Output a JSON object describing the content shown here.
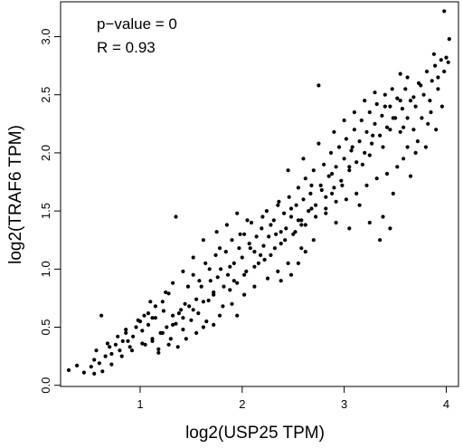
{
  "chart_data": {
    "type": "scatter",
    "title": "",
    "xlabel": "log2(USP25 TPM)",
    "ylabel": "log2(TRAF6 TPM)",
    "xlim": [
      0.22,
      4.12
    ],
    "ylim": [
      -0.01,
      3.3
    ],
    "x_ticks": [
      1,
      2,
      3,
      4
    ],
    "y_ticks": [
      0.0,
      0.5,
      1.0,
      1.5,
      2.0,
      2.5,
      3.0
    ],
    "x_tick_labels": [
      "1",
      "2",
      "3",
      "4"
    ],
    "y_tick_labels": [
      "0.0",
      "0.5",
      "1.0",
      "1.5",
      "2.0",
      "2.5",
      "3.0"
    ],
    "annotations": [
      "p−value = 0",
      "R = 0.93"
    ],
    "grid": false,
    "legend": "none",
    "point_color": "#000000",
    "points": [
      [
        0.3,
        0.13
      ],
      [
        0.38,
        0.17
      ],
      [
        0.45,
        0.11
      ],
      [
        0.52,
        0.16
      ],
      [
        0.55,
        0.22
      ],
      [
        0.57,
        0.3
      ],
      [
        0.6,
        0.19
      ],
      [
        0.63,
        0.12
      ],
      [
        0.66,
        0.25
      ],
      [
        0.7,
        0.33
      ],
      [
        0.72,
        0.27
      ],
      [
        0.76,
        0.35
      ],
      [
        0.8,
        0.3
      ],
      [
        0.83,
        0.38
      ],
      [
        0.86,
        0.45
      ],
      [
        0.9,
        0.33
      ],
      [
        0.93,
        0.42
      ],
      [
        0.96,
        0.5
      ],
      [
        1.0,
        0.55
      ],
      [
        1.02,
        0.47
      ],
      [
        1.04,
        0.6
      ],
      [
        1.08,
        0.52
      ],
      [
        1.1,
        0.72
      ],
      [
        1.12,
        0.38
      ],
      [
        1.15,
        0.58
      ],
      [
        1.18,
        0.31
      ],
      [
        1.2,
        0.45
      ],
      [
        1.23,
        0.64
      ],
      [
        1.26,
        0.5
      ],
      [
        1.28,
        0.79
      ],
      [
        1.3,
        0.4
      ],
      [
        1.32,
        0.6
      ],
      [
        1.35,
        0.53
      ],
      [
        1.37,
        0.33
      ],
      [
        1.4,
        0.65
      ],
      [
        1.42,
        0.48
      ],
      [
        1.44,
        0.7
      ],
      [
        1.47,
        0.85
      ],
      [
        1.5,
        0.56
      ],
      [
        1.52,
        0.95
      ],
      [
        1.55,
        0.74
      ],
      [
        1.57,
        0.62
      ],
      [
        1.6,
        0.85
      ],
      [
        1.62,
        0.5
      ],
      [
        1.64,
        1.05
      ],
      [
        1.67,
        0.73
      ],
      [
        1.69,
        0.9
      ],
      [
        1.72,
        0.8
      ],
      [
        1.74,
        1.12
      ],
      [
        1.76,
        0.93
      ],
      [
        1.79,
        1.0
      ],
      [
        1.81,
        0.68
      ],
      [
        1.84,
        1.15
      ],
      [
        1.86,
        0.95
      ],
      [
        1.88,
        0.82
      ],
      [
        1.9,
        1.25
      ],
      [
        1.92,
        1.05
      ],
      [
        1.95,
        0.88
      ],
      [
        1.97,
        1.18
      ],
      [
        2.0,
        1.1
      ],
      [
        2.02,
        1.3
      ],
      [
        2.04,
        0.98
      ],
      [
        2.07,
        1.22
      ],
      [
        2.09,
        1.4
      ],
      [
        2.12,
        1.15
      ],
      [
        2.14,
        1.28
      ],
      [
        2.16,
        1.05
      ],
      [
        2.19,
        1.35
      ],
      [
        2.21,
        1.2
      ],
      [
        2.24,
        1.5
      ],
      [
        2.26,
        1.28
      ],
      [
        2.28,
        1.12
      ],
      [
        2.31,
        1.42
      ],
      [
        2.33,
        1.3
      ],
      [
        2.36,
        1.58
      ],
      [
        2.38,
        1.22
      ],
      [
        2.41,
        1.48
      ],
      [
        2.43,
        1.35
      ],
      [
        2.46,
        1.62
      ],
      [
        2.48,
        1.45
      ],
      [
        2.5,
        1.3
      ],
      [
        2.53,
        1.55
      ],
      [
        2.55,
        1.7
      ],
      [
        2.58,
        1.42
      ],
      [
        2.6,
        1.6
      ],
      [
        2.62,
        1.78
      ],
      [
        2.65,
        1.5
      ],
      [
        2.67,
        1.65
      ],
      [
        2.7,
        1.85
      ],
      [
        2.72,
        1.55
      ],
      [
        2.75,
        2.58
      ],
      [
        2.77,
        1.72
      ],
      [
        2.8,
        1.9
      ],
      [
        2.82,
        1.62
      ],
      [
        2.85,
        1.8
      ],
      [
        2.87,
        2.0
      ],
      [
        2.9,
        1.7
      ],
      [
        2.92,
        1.88
      ],
      [
        2.95,
        2.05
      ],
      [
        2.97,
        1.76
      ],
      [
        3.0,
        1.95
      ],
      [
        3.02,
        2.12
      ],
      [
        3.05,
        1.85
      ],
      [
        3.07,
        2.02
      ],
      [
        3.1,
        2.2
      ],
      [
        3.12,
        1.92
      ],
      [
        3.15,
        2.1
      ],
      [
        3.17,
        2.28
      ],
      [
        3.2,
        2.0
      ],
      [
        3.22,
        2.18
      ],
      [
        3.25,
        2.35
      ],
      [
        3.27,
        2.08
      ],
      [
        3.3,
        2.25
      ],
      [
        3.32,
        2.42
      ],
      [
        3.35,
        2.15
      ],
      [
        3.37,
        2.32
      ],
      [
        3.4,
        2.5
      ],
      [
        3.42,
        2.22
      ],
      [
        3.45,
        2.4
      ],
      [
        3.47,
        2.55
      ],
      [
        3.5,
        2.3
      ],
      [
        3.52,
        2.47
      ],
      [
        3.55,
        2.18
      ],
      [
        3.57,
        2.38
      ],
      [
        3.6,
        2.55
      ],
      [
        3.62,
        2.3
      ],
      [
        3.65,
        2.45
      ],
      [
        3.68,
        2.2
      ],
      [
        3.7,
        2.4
      ],
      [
        3.73,
        2.6
      ],
      [
        3.76,
        2.3
      ],
      [
        3.78,
        2.5
      ],
      [
        3.81,
        2.7
      ],
      [
        3.84,
        2.45
      ],
      [
        3.86,
        2.62
      ],
      [
        3.89,
        2.75
      ],
      [
        3.92,
        2.55
      ],
      [
        3.95,
        2.8
      ],
      [
        3.98,
        2.7
      ],
      [
        4.0,
        2.82
      ],
      [
        3.98,
        3.22
      ],
      [
        4.03,
        2.98
      ],
      [
        3.96,
        2.4
      ],
      [
        3.9,
        2.2
      ],
      [
        3.82,
        2.25
      ],
      [
        3.7,
        2.0
      ],
      [
        3.58,
        1.95
      ],
      [
        3.48,
        1.65
      ],
      [
        3.38,
        1.45
      ],
      [
        3.25,
        1.4
      ],
      [
        3.15,
        1.55
      ],
      [
        3.05,
        1.35
      ],
      [
        2.92,
        1.4
      ],
      [
        2.82,
        1.48
      ],
      [
        2.7,
        1.25
      ],
      [
        2.58,
        1.18
      ],
      [
        2.45,
        1.05
      ],
      [
        2.35,
        0.98
      ],
      [
        2.25,
        0.92
      ],
      [
        2.12,
        0.85
      ],
      [
        2.02,
        0.78
      ],
      [
        1.9,
        0.7
      ],
      [
        1.78,
        0.6
      ],
      [
        1.65,
        0.55
      ],
      [
        1.55,
        0.45
      ],
      [
        1.45,
        0.4
      ],
      [
        1.35,
        1.45
      ],
      [
        1.28,
        0.35
      ],
      [
        1.18,
        0.28
      ],
      [
        1.05,
        0.35
      ],
      [
        0.88,
        0.38
      ],
      [
        0.72,
        0.18
      ],
      [
        0.62,
        0.6
      ],
      [
        0.55,
        0.1
      ],
      [
        1.12,
        0.58
      ],
      [
        1.22,
        0.72
      ],
      [
        1.38,
        0.62
      ],
      [
        1.48,
        0.68
      ],
      [
        1.58,
        0.9
      ],
      [
        1.68,
        1.0
      ],
      [
        1.78,
        1.18
      ],
      [
        1.88,
        1.02
      ],
      [
        1.98,
        1.3
      ],
      [
        2.08,
        1.18
      ],
      [
        2.18,
        1.12
      ],
      [
        2.28,
        1.38
      ],
      [
        2.38,
        1.32
      ],
      [
        2.48,
        1.52
      ],
      [
        2.58,
        1.38
      ],
      [
        2.68,
        1.72
      ],
      [
        2.78,
        1.68
      ],
      [
        2.88,
        1.82
      ],
      [
        2.98,
        1.72
      ],
      [
        3.08,
        2.05
      ],
      [
        3.18,
        1.9
      ],
      [
        3.28,
        2.15
      ],
      [
        3.38,
        2.05
      ],
      [
        3.48,
        2.3
      ],
      [
        3.58,
        2.22
      ],
      [
        3.68,
        2.48
      ],
      [
        3.72,
        2.1
      ],
      [
        3.62,
        2.05
      ],
      [
        3.52,
        1.88
      ],
      [
        3.42,
        1.82
      ],
      [
        3.32,
        1.78
      ],
      [
        3.22,
        1.72
      ],
      [
        3.12,
        1.65
      ],
      [
        3.02,
        1.6
      ],
      [
        2.92,
        1.58
      ],
      [
        2.82,
        1.52
      ],
      [
        2.72,
        1.45
      ],
      [
        2.62,
        1.38
      ],
      [
        2.52,
        1.32
      ],
      [
        2.42,
        1.25
      ],
      [
        2.32,
        1.18
      ],
      [
        2.22,
        1.08
      ],
      [
        2.12,
        1.02
      ],
      [
        2.02,
        0.95
      ],
      [
        1.92,
        0.9
      ],
      [
        1.82,
        0.85
      ],
      [
        1.72,
        0.78
      ],
      [
        1.62,
        0.72
      ],
      [
        1.52,
        0.65
      ],
      [
        1.42,
        0.58
      ],
      [
        1.32,
        0.52
      ],
      [
        1.22,
        0.45
      ],
      [
        1.12,
        0.4
      ],
      [
        1.02,
        0.36
      ],
      [
        0.92,
        0.3
      ],
      [
        0.82,
        0.25
      ],
      [
        2.45,
        1.85
      ],
      [
        2.6,
        1.95
      ],
      [
        2.75,
        2.08
      ],
      [
        2.9,
        2.18
      ],
      [
        3.0,
        2.28
      ],
      [
        3.1,
        2.35
      ],
      [
        3.2,
        2.45
      ],
      [
        3.3,
        2.52
      ],
      [
        3.4,
        2.4
      ],
      [
        3.55,
        2.68
      ],
      [
        3.62,
        2.65
      ],
      [
        3.75,
        2.58
      ],
      [
        3.85,
        2.35
      ],
      [
        2.35,
        1.55
      ],
      [
        2.2,
        1.45
      ],
      [
        2.05,
        1.42
      ],
      [
        1.95,
        1.48
      ],
      [
        1.85,
        1.38
      ],
      [
        1.75,
        1.32
      ],
      [
        1.62,
        1.25
      ],
      [
        1.52,
        1.1
      ],
      [
        1.42,
        0.98
      ],
      [
        1.32,
        0.88
      ],
      [
        1.25,
        0.8
      ],
      [
        1.15,
        0.68
      ],
      [
        1.08,
        0.62
      ],
      [
        0.98,
        0.56
      ],
      [
        0.86,
        0.48
      ],
      [
        0.78,
        0.42
      ],
      [
        0.68,
        0.36
      ],
      [
        2.55,
        1.05
      ],
      [
        2.62,
        1.15
      ],
      [
        2.38,
        0.9
      ],
      [
        2.48,
        0.95
      ],
      [
        1.95,
        0.6
      ],
      [
        1.72,
        0.52
      ],
      [
        3.35,
        1.25
      ],
      [
        3.45,
        1.35
      ],
      [
        3.65,
        1.8
      ],
      [
        3.8,
        2.05
      ],
      [
        3.92,
        2.65
      ],
      [
        3.88,
        2.85
      ],
      [
        4.02,
        2.78
      ],
      [
        3.55,
        2.45
      ],
      [
        3.45,
        2.2
      ],
      [
        3.25,
        1.98
      ],
      [
        3.05,
        1.88
      ],
      [
        2.88,
        1.65
      ],
      [
        2.68,
        1.52
      ],
      [
        2.55,
        1.42
      ]
    ]
  }
}
